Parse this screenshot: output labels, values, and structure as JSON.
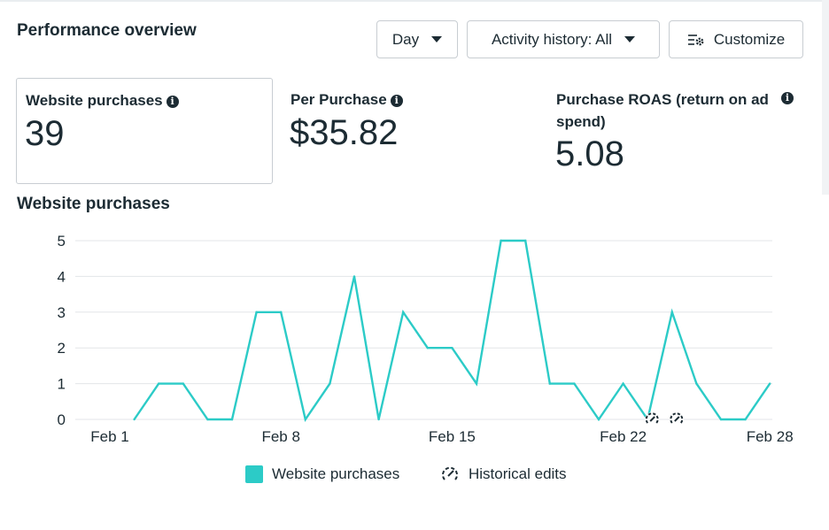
{
  "header": {
    "title": "Performance overview",
    "day_label": "Day",
    "activity_label": "Activity history: All",
    "customize_label": "Customize"
  },
  "metrics": [
    {
      "label": "Website purchases",
      "value": "39"
    },
    {
      "label": "Per Purchase",
      "value": "$35.82"
    },
    {
      "label": "Purchase ROAS (return on ad spend)",
      "value": "5.08"
    }
  ],
  "chart_title": "Website purchases",
  "legend": {
    "series_label": "Website purchases",
    "edits_label": "Historical edits"
  },
  "colors": {
    "series": "#2ccbc7",
    "grid": "#e3e6e8",
    "text": "#1c2b33"
  },
  "chart_data": {
    "type": "line",
    "x": [
      "Feb 2",
      "Feb 3",
      "Feb 4",
      "Feb 5",
      "Feb 6",
      "Feb 7",
      "Feb 8",
      "Feb 9",
      "Feb 10",
      "Feb 11",
      "Feb 12",
      "Feb 13",
      "Feb 14",
      "Feb 15",
      "Feb 16",
      "Feb 17",
      "Feb 18",
      "Feb 19",
      "Feb 20",
      "Feb 21",
      "Feb 22",
      "Feb 23",
      "Feb 24",
      "Feb 25",
      "Feb 26",
      "Feb 27",
      "Feb 28"
    ],
    "series": [
      {
        "name": "Website purchases",
        "values": [
          0,
          1,
          1,
          0,
          0,
          3,
          3,
          0,
          1,
          4,
          0,
          3,
          2,
          2,
          1,
          5,
          5,
          1,
          1,
          0,
          1,
          0,
          3,
          1,
          0,
          0,
          1
        ]
      }
    ],
    "x_tick_labels": [
      "Feb 1",
      "Feb 8",
      "Feb 15",
      "Feb 22",
      "Feb 28"
    ],
    "y_ticks": [
      0,
      1,
      2,
      3,
      4,
      5
    ],
    "ylim": [
      0,
      5
    ],
    "historical_edits": [
      "Feb 23",
      "Feb 24"
    ],
    "grid": true,
    "legend_position": "bottom"
  }
}
